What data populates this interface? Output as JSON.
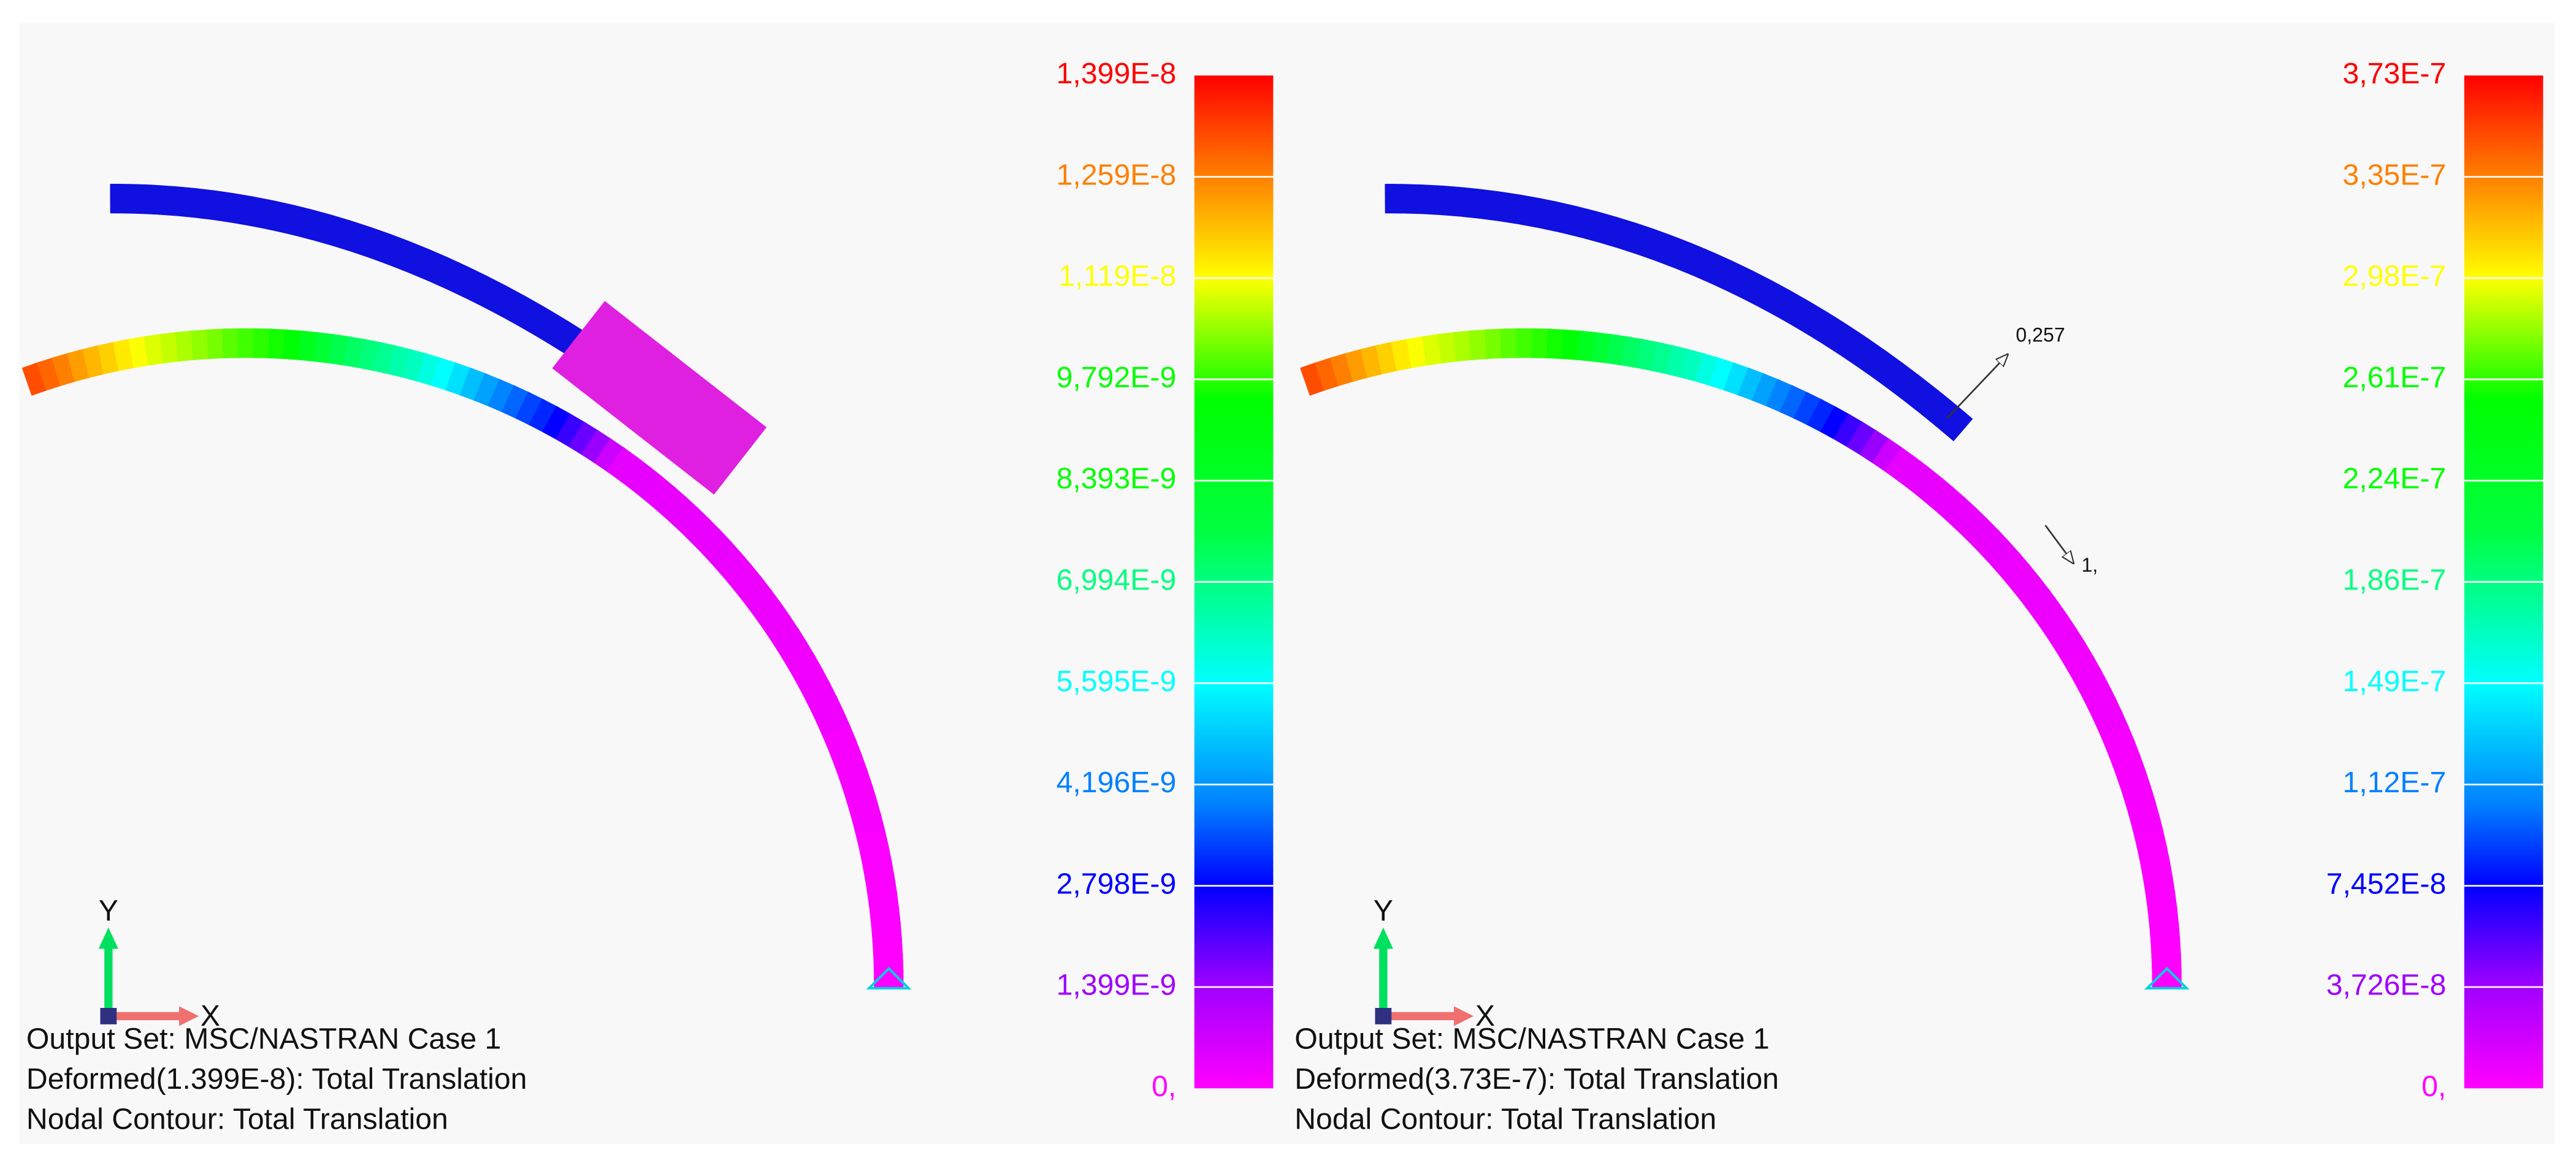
{
  "panels": [
    {
      "legend": {
        "labels": [
          "1,399E-8",
          "1,259E-8",
          "1,119E-8",
          "9,792E-9",
          "8,393E-9",
          "6,994E-9",
          "5,595E-9",
          "4,196E-9",
          "2,798E-9",
          "1,399E-9",
          "0,"
        ]
      },
      "info": [
        "Output Set: MSC/NASTRAN Case 1",
        "Deformed(1.399E-8): Total Translation",
        "Nodal Contour: Total Translation"
      ],
      "triad": {
        "x": "X",
        "y": "Y"
      }
    },
    {
      "legend": {
        "labels": [
          "3,73E-7",
          "3,35E-7",
          "2,98E-7",
          "2,61E-7",
          "2,24E-7",
          "1,86E-7",
          "1,49E-7",
          "1,12E-7",
          "7,452E-8",
          "3,726E-8",
          "0,"
        ]
      },
      "info": [
        "Output Set: MSC/NASTRAN Case 1",
        "Deformed(3.73E-7): Total Translation",
        "Nodal Contour: Total Translation"
      ],
      "triad": {
        "x": "X",
        "y": "Y"
      },
      "annotations": [
        "0,257",
        "1,"
      ]
    }
  ]
}
